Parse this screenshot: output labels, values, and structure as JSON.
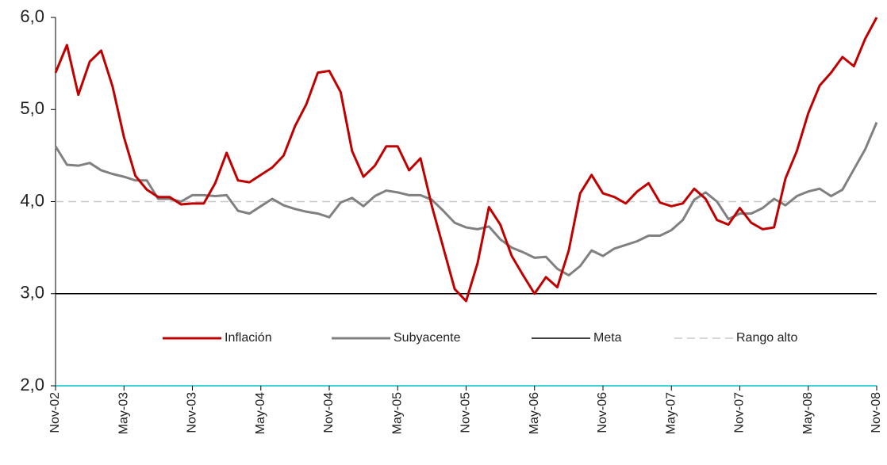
{
  "chart_data": {
    "type": "line",
    "categories": [
      "Nov-02",
      null,
      null,
      null,
      null,
      null,
      "May-03",
      null,
      null,
      null,
      null,
      null,
      "Nov-03",
      null,
      null,
      null,
      null,
      null,
      "May-04",
      null,
      null,
      null,
      null,
      null,
      "Nov-04",
      null,
      null,
      null,
      null,
      null,
      "May-05",
      null,
      null,
      null,
      null,
      null,
      "Nov-05",
      null,
      null,
      null,
      null,
      null,
      "May-06",
      null,
      null,
      null,
      null,
      null,
      "Nov-06",
      null,
      null,
      null,
      null,
      null,
      "May-07",
      null,
      null,
      null,
      null,
      null,
      "Nov-07",
      null,
      null,
      null,
      null,
      null,
      "May-08",
      null,
      null,
      null,
      null,
      null,
      "Nov-08"
    ],
    "series": [
      {
        "name": "Inflación",
        "color": "#c00000",
        "style": "solid",
        "values": [
          5.4,
          5.7,
          5.16,
          5.52,
          5.64,
          5.25,
          4.7,
          4.28,
          4.13,
          4.05,
          4.05,
          3.97,
          3.98,
          3.98,
          4.2,
          4.53,
          4.23,
          4.21,
          4.29,
          4.37,
          4.5,
          4.82,
          5.06,
          5.4,
          5.42,
          5.19,
          4.55,
          4.27,
          4.39,
          4.6,
          4.6,
          4.34,
          4.47,
          3.95,
          3.5,
          3.05,
          2.92,
          3.33,
          3.94,
          3.75,
          3.41,
          3.2,
          3.0,
          3.18,
          3.07,
          3.47,
          4.09,
          4.29,
          4.09,
          4.05,
          3.98,
          4.11,
          4.2,
          3.99,
          3.95,
          3.98,
          4.14,
          4.03,
          3.8,
          3.75,
          3.93,
          3.77,
          3.7,
          3.72,
          4.25,
          4.55,
          4.96,
          5.26,
          5.4,
          5.57,
          5.47,
          5.77,
          6.0
        ]
      },
      {
        "name": "Subyacente",
        "color": "#808080",
        "style": "solid",
        "values": [
          4.6,
          4.4,
          4.39,
          4.42,
          4.34,
          4.3,
          4.27,
          4.23,
          4.23,
          4.03,
          4.03,
          4.0,
          4.07,
          4.07,
          4.06,
          4.07,
          3.9,
          3.87,
          3.95,
          4.03,
          3.96,
          3.92,
          3.89,
          3.87,
          3.83,
          3.99,
          4.04,
          3.95,
          4.06,
          4.12,
          4.1,
          4.07,
          4.07,
          4.02,
          3.9,
          3.77,
          3.72,
          3.7,
          3.73,
          3.59,
          3.5,
          3.45,
          3.39,
          3.4,
          3.27,
          3.2,
          3.3,
          3.47,
          3.41,
          3.49,
          3.53,
          3.57,
          3.63,
          3.63,
          3.69,
          3.8,
          4.02,
          4.1,
          4.0,
          3.81,
          3.87,
          3.87,
          3.93,
          4.03,
          3.96,
          4.06,
          4.11,
          4.14,
          4.06,
          4.13,
          4.35,
          4.57,
          4.86
        ]
      },
      {
        "name": "Meta",
        "color": "#000000",
        "style": "solid",
        "values": [
          3,
          3,
          3,
          3,
          3,
          3,
          3,
          3,
          3,
          3,
          3,
          3,
          3,
          3,
          3,
          3,
          3,
          3,
          3,
          3,
          3,
          3,
          3,
          3,
          3,
          3,
          3,
          3,
          3,
          3,
          3,
          3,
          3,
          3,
          3,
          3,
          3,
          3,
          3,
          3,
          3,
          3,
          3,
          3,
          3,
          3,
          3,
          3,
          3,
          3,
          3,
          3,
          3,
          3,
          3,
          3,
          3,
          3,
          3,
          3,
          3,
          3,
          3,
          3,
          3,
          3,
          3,
          3,
          3,
          3,
          3,
          3,
          3
        ]
      },
      {
        "name": "Rango alto",
        "color": "#c8c8c8",
        "style": "dashed",
        "values": [
          4,
          4,
          4,
          4,
          4,
          4,
          4,
          4,
          4,
          4,
          4,
          4,
          4,
          4,
          4,
          4,
          4,
          4,
          4,
          4,
          4,
          4,
          4,
          4,
          4,
          4,
          4,
          4,
          4,
          4,
          4,
          4,
          4,
          4,
          4,
          4,
          4,
          4,
          4,
          4,
          4,
          4,
          4,
          4,
          4,
          4,
          4,
          4,
          4,
          4,
          4,
          4,
          4,
          4,
          4,
          4,
          4,
          4,
          4,
          4,
          4,
          4,
          4,
          4,
          4,
          4,
          4,
          4,
          4,
          4,
          4,
          4,
          4
        ]
      }
    ],
    "ylim": [
      2,
      6
    ],
    "yticks": [
      {
        "value": 2,
        "label": "2,0"
      },
      {
        "value": 3,
        "label": "3,0"
      },
      {
        "value": 4,
        "label": "4,0"
      },
      {
        "value": 5,
        "label": "5,0"
      },
      {
        "value": 6,
        "label": "6,0"
      }
    ],
    "grid": false,
    "legend": "lower center"
  }
}
